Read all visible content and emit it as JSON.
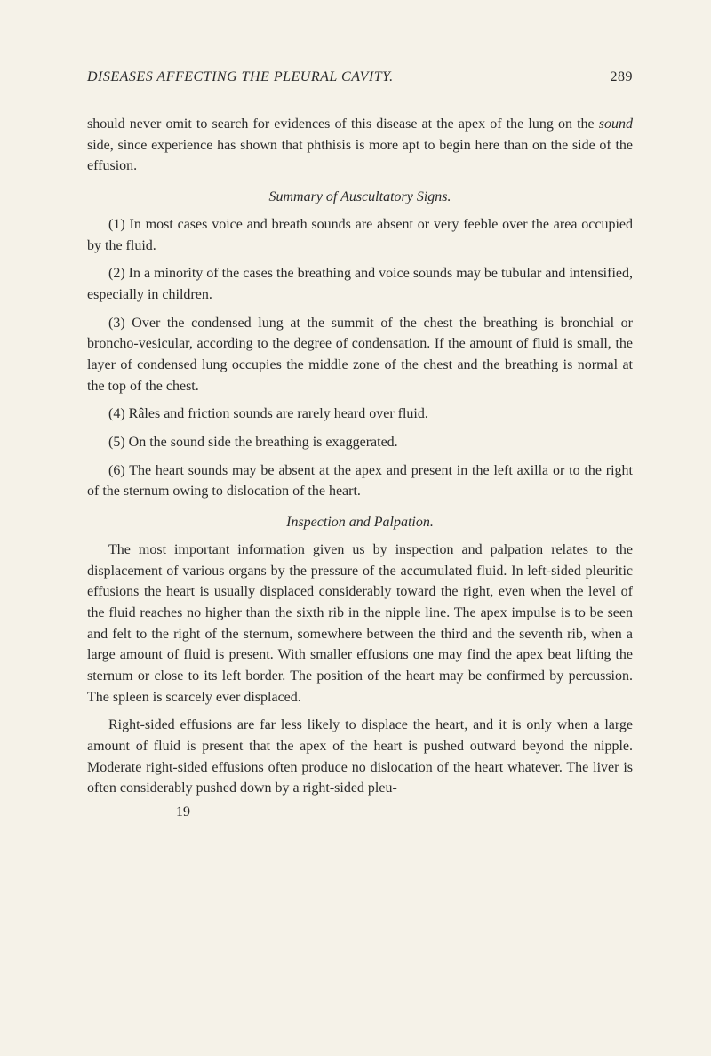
{
  "header": {
    "title": "DISEASES AFFECTING THE PLEURAL CAVITY.",
    "page": "289"
  },
  "para1_a": "should never omit to search for evidences of this disease at the apex of the lung on the ",
  "para1_b": "sound",
  "para1_c": " side, since experience has shown that phthisis is more apt to begin here than on the side of the effusion.",
  "section1": "Summary of Auscultatory Signs.",
  "item1": "(1) In most cases voice and breath sounds are absent or very feeble over the area occupied by the fluid.",
  "item2": "(2) In a minority of the cases the breathing and voice sounds may be tubular and intensified, especially in children.",
  "item3": "(3) Over the condensed lung at the summit of the chest the breathing is bronchial or broncho-vesicular, according to the degree of condensation. If the amount of fluid is small, the layer of condensed lung occupies the middle zone of the chest and the breathing is normal at the top of the chest.",
  "item4": "(4) Râles and friction sounds are rarely heard over fluid.",
  "item5": "(5) On the sound side the breathing is exaggerated.",
  "item6": "(6) The heart sounds may be absent at the apex and present in the left axilla or to the right of the sternum owing to dislocation of the heart.",
  "section2": "Inspection and Palpation.",
  "para2": "The most important information given us by inspection and palpation relates to the displacement of various organs by the pressure of the accumulated fluid. In left-sided pleuritic effusions the heart is usually displaced considerably toward the right, even when the level of the fluid reaches no higher than the sixth rib in the nipple line. The apex impulse is to be seen and felt to the right of the sternum, somewhere between the third and the seventh rib, when a large amount of fluid is present. With smaller effusions one may find the apex beat lifting the sternum or close to its left border. The position of the heart may be confirmed by percussion. The spleen is scarcely ever displaced.",
  "para3": "Right-sided effusions are far less likely to displace the heart, and it is only when a large amount of fluid is present that the apex of the heart is pushed outward beyond the nipple. Moderate right-sided effusions often produce no dislocation of the heart whatever. The liver is often considerably pushed down by a right-sided pleu-",
  "footer": "19"
}
